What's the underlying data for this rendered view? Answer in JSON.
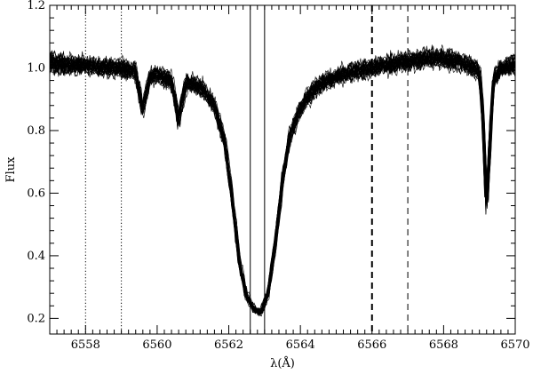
{
  "chart_data": {
    "type": "line",
    "xlabel": "λ(Å)",
    "ylabel": "Flux",
    "xlim": [
      6557.0,
      6570.0
    ],
    "ylim": [
      0.15,
      1.2
    ],
    "x_ticks": [
      6558,
      6560,
      6562,
      6564,
      6566,
      6568,
      6570
    ],
    "x_tick_labels": [
      "6558",
      "6560",
      "6562",
      "6564",
      "6566",
      "6568",
      "6570"
    ],
    "y_ticks": [
      0.2,
      0.4,
      0.6,
      0.8,
      1.0,
      1.2
    ],
    "y_tick_labels": [
      "0.2",
      "0.4",
      "0.6",
      "0.8",
      "1.0",
      "1.2"
    ],
    "grid": false,
    "line_color": "#000000",
    "n_overplotted_spectra": 30,
    "spectrum_profile": {
      "x": [
        6557.0,
        6557.5,
        6558.0,
        6558.5,
        6559.0,
        6559.4,
        6559.55,
        6559.6,
        6559.65,
        6559.8,
        6560.0,
        6560.4,
        6560.55,
        6560.6,
        6560.65,
        6560.8,
        6561.0,
        6561.3,
        6561.6,
        6561.9,
        6562.1,
        6562.3,
        6562.5,
        6562.7,
        6562.9,
        6563.1,
        6563.3,
        6563.5,
        6563.7,
        6564.0,
        6564.3,
        6564.6,
        6565.0,
        6565.5,
        6566.0,
        6566.5,
        6567.0,
        6567.5,
        6568.0,
        6568.5,
        6569.0,
        6569.1,
        6569.2,
        6569.3,
        6569.4,
        6569.6,
        6570.0
      ],
      "y": [
        1.02,
        1.01,
        1.01,
        1.0,
        1.0,
        0.99,
        0.9,
        0.86,
        0.9,
        0.97,
        0.98,
        0.96,
        0.87,
        0.82,
        0.87,
        0.95,
        0.95,
        0.93,
        0.88,
        0.76,
        0.58,
        0.38,
        0.27,
        0.23,
        0.22,
        0.28,
        0.44,
        0.64,
        0.78,
        0.87,
        0.92,
        0.95,
        0.97,
        0.99,
        1.0,
        1.01,
        1.02,
        1.03,
        1.03,
        1.02,
        0.99,
        0.85,
        0.55,
        0.78,
        0.96,
        1.0,
        1.01
      ]
    },
    "vertical_lines": [
      {
        "x": 6558.0,
        "style": "dotted"
      },
      {
        "x": 6559.0,
        "style": "dotted"
      },
      {
        "x": 6562.6,
        "style": "solid"
      },
      {
        "x": 6563.0,
        "style": "solid"
      },
      {
        "x": 6566.0,
        "style": "thick-dashed"
      },
      {
        "x": 6567.0,
        "style": "dashed"
      }
    ]
  }
}
